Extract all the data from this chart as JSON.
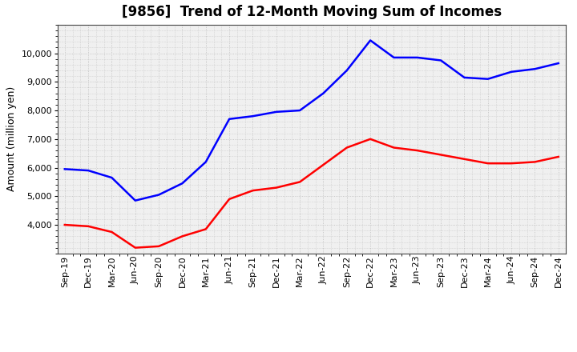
{
  "title": "[9856]  Trend of 12-Month Moving Sum of Incomes",
  "ylabel": "Amount (million yen)",
  "x_labels": [
    "Sep-19",
    "Dec-19",
    "Mar-20",
    "Jun-20",
    "Sep-20",
    "Dec-20",
    "Mar-21",
    "Jun-21",
    "Sep-21",
    "Dec-21",
    "Mar-22",
    "Jun-22",
    "Sep-22",
    "Dec-22",
    "Mar-23",
    "Jun-23",
    "Sep-23",
    "Dec-23",
    "Mar-24",
    "Jun-24",
    "Sep-24",
    "Dec-24"
  ],
  "ordinary_income": [
    5950,
    5900,
    5650,
    4850,
    5050,
    5450,
    6200,
    7700,
    7800,
    7950,
    8000,
    8600,
    9400,
    10450,
    9850,
    9850,
    9750,
    9150,
    9100,
    9350,
    9450,
    9650
  ],
  "net_income": [
    4000,
    3950,
    3750,
    3200,
    3250,
    3600,
    3850,
    4900,
    5200,
    5300,
    5500,
    6100,
    6700,
    7000,
    6700,
    6600,
    6450,
    6300,
    6150,
    6150,
    6200,
    6380
  ],
  "ordinary_color": "#0000ff",
  "net_color": "#ff0000",
  "ylim_min": 3000,
  "ylim_max": 11000,
  "yticks": [
    4000,
    5000,
    6000,
    7000,
    8000,
    9000,
    10000
  ],
  "background_color": "#ffffff",
  "plot_bg_color": "#f0f0f0",
  "grid_color": "#bbbbbb",
  "title_fontsize": 12,
  "axis_label_fontsize": 9,
  "tick_fontsize": 8,
  "line_width": 1.8
}
